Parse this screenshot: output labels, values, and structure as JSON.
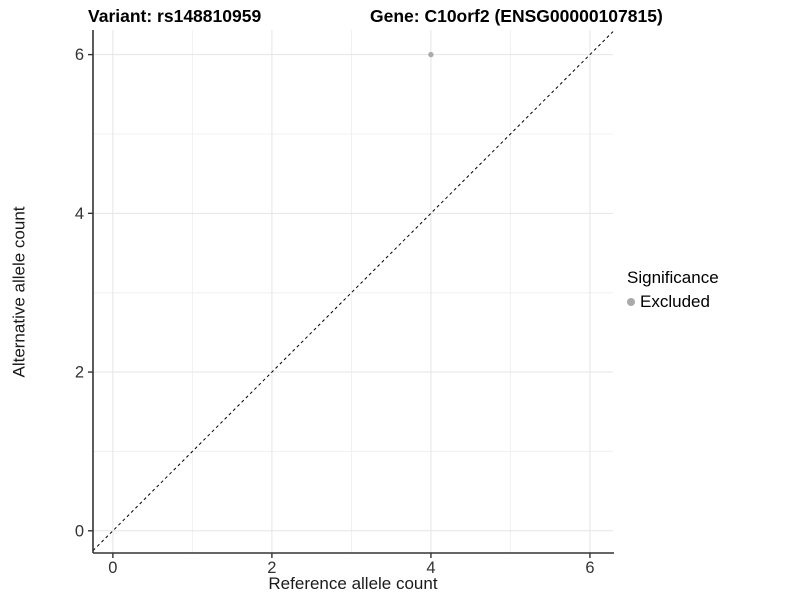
{
  "chart_data": {
    "type": "scatter",
    "title_left": "Variant: rs148810959",
    "title_right": "Gene: C10orf2 (ENSG00000107815)",
    "xlabel": "Reference allele count",
    "ylabel": "Alternative allele count",
    "xlim": [
      -0.25,
      6.29
    ],
    "ylim": [
      -0.28,
      6.31
    ],
    "x_ticks": [
      0,
      2,
      4,
      6
    ],
    "y_ticks": [
      0,
      2,
      4,
      6
    ],
    "x_minor_gridlines": [
      1,
      3,
      5
    ],
    "y_minor_gridlines": [
      1,
      3,
      5
    ],
    "grid": true,
    "legend": {
      "position": "right",
      "title": "Significance",
      "entries": [
        {
          "label": "Excluded",
          "color": "#aaaaaa"
        }
      ]
    },
    "series": [
      {
        "name": "Excluded",
        "color": "#aaaaaa",
        "points": [
          {
            "x": 4,
            "y": 6
          }
        ]
      }
    ],
    "reference_line": {
      "slope": 1,
      "intercept": 0,
      "style": "dashed",
      "color": "#000000"
    },
    "colors": {
      "grid_major": "#e5e5e5",
      "grid_minor": "#f0f0f0",
      "axis_line": "#333333",
      "tick_label": "#333333",
      "point": "#aaaaaa"
    }
  }
}
